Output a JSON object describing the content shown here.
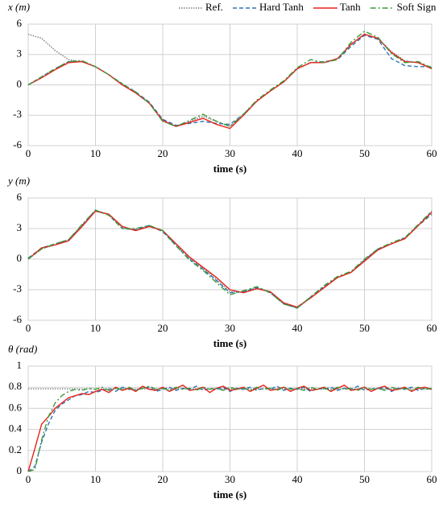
{
  "chart_data": [
    {
      "type": "line",
      "ylabel": "x (m)",
      "xlabel": "time (s)",
      "legend": "top-right",
      "grid": true,
      "x": [
        0,
        2,
        4,
        6,
        8,
        10,
        12,
        14,
        16,
        18,
        20,
        22,
        24,
        26,
        28,
        30,
        32,
        34,
        36,
        38,
        40,
        42,
        44,
        46,
        48,
        50,
        52,
        54,
        56,
        58,
        60
      ],
      "xlim": [
        0,
        60
      ],
      "xticks": [
        0,
        10,
        20,
        30,
        40,
        50,
        60
      ],
      "ylim": [
        -6,
        6
      ],
      "yticks": [
        6,
        3,
        0,
        -3,
        -6
      ],
      "series": [
        {
          "name": "Ref.",
          "color": "#7f7f7f",
          "style": "dotted",
          "values": [
            5,
            4.6,
            3.4,
            2.5,
            2.3,
            1.8,
            1.0,
            0,
            -0.8,
            -1.8,
            -3.6,
            -4.1,
            -3.6,
            -3.1,
            -3.6,
            -4.1,
            -3.0,
            -1.6,
            -0.6,
            0.3,
            1.6,
            2.2,
            2.2,
            2.6,
            4.0,
            5.0,
            4.6,
            3.3,
            2.4,
            2.2,
            1.7
          ]
        },
        {
          "name": "Hard Tanh",
          "color": "#2e75b6",
          "style": "dashed",
          "values": [
            0,
            0.8,
            1.6,
            2.3,
            2.3,
            1.8,
            1.0,
            0.1,
            -0.7,
            -1.7,
            -3.4,
            -4.0,
            -3.8,
            -3.6,
            -3.8,
            -3.9,
            -2.9,
            -1.6,
            -0.6,
            0.3,
            1.6,
            2.2,
            2.3,
            2.5,
            3.8,
            4.9,
            4.5,
            2.6,
            1.9,
            1.8,
            1.8
          ]
        },
        {
          "name": "Tanh",
          "color": "#e8231b",
          "style": "solid",
          "values": [
            0,
            0.7,
            1.5,
            2.2,
            2.3,
            1.8,
            1.0,
            0,
            -0.8,
            -1.8,
            -3.5,
            -4.1,
            -3.7,
            -3.3,
            -3.9,
            -4.3,
            -3.0,
            -1.6,
            -0.6,
            0.3,
            1.6,
            2.2,
            2.2,
            2.6,
            4.0,
            5.0,
            4.6,
            3.2,
            2.3,
            2.2,
            1.6
          ]
        },
        {
          "name": "Soft Sign",
          "color": "#3a9a3a",
          "style": "dashdot",
          "values": [
            0,
            0.8,
            1.6,
            2.3,
            2.4,
            1.8,
            1.0,
            0.1,
            -0.7,
            -1.8,
            -3.6,
            -4.1,
            -3.5,
            -2.9,
            -3.6,
            -4.1,
            -2.9,
            -1.5,
            -0.5,
            0.4,
            1.7,
            2.5,
            2.2,
            2.5,
            4.2,
            5.3,
            4.7,
            3.1,
            2.2,
            2.3,
            1.7
          ]
        }
      ]
    },
    {
      "type": "line",
      "ylabel": "y (m)",
      "xlabel": "time (s)",
      "grid": true,
      "x": [
        0,
        2,
        4,
        6,
        8,
        10,
        12,
        14,
        16,
        18,
        20,
        22,
        24,
        26,
        28,
        30,
        32,
        34,
        36,
        38,
        40,
        42,
        44,
        46,
        48,
        50,
        52,
        54,
        56,
        58,
        60
      ],
      "xlim": [
        0,
        60
      ],
      "xticks": [
        0,
        10,
        20,
        30,
        40,
        50,
        60
      ],
      "ylim": [
        -6,
        6
      ],
      "yticks": [
        6,
        3,
        0,
        -3,
        -6
      ],
      "series": [
        {
          "color": "#7f7f7f",
          "style": "dotted",
          "values": [
            0,
            1.0,
            1.4,
            1.8,
            3.2,
            4.8,
            4.4,
            3.1,
            2.8,
            3.3,
            2.8,
            1.4,
            0.1,
            -0.9,
            -2.0,
            -3.2,
            -3.2,
            -2.8,
            -3.2,
            -4.3,
            -4.8,
            -3.8,
            -2.8,
            -1.8,
            -1.3,
            -0.1,
            1.0,
            1.5,
            2.0,
            3.3,
            4.7
          ]
        },
        {
          "color": "#2e75b6",
          "style": "dashed",
          "values": [
            0.1,
            1.1,
            1.5,
            1.9,
            3.3,
            4.8,
            4.3,
            3.0,
            2.9,
            3.3,
            2.7,
            1.3,
            0,
            -1.0,
            -2.1,
            -3.3,
            -3.2,
            -2.8,
            -3.3,
            -4.4,
            -4.8,
            -3.7,
            -2.7,
            -1.8,
            -1.3,
            -0.1,
            1.0,
            1.5,
            2.1,
            3.3,
            4.4
          ]
        },
        {
          "color": "#e8231b",
          "style": "solid",
          "values": [
            0,
            1.1,
            1.4,
            1.8,
            3.2,
            4.7,
            4.4,
            3.2,
            2.8,
            3.2,
            2.8,
            1.5,
            0.2,
            -0.8,
            -1.8,
            -3.0,
            -3.3,
            -2.9,
            -3.2,
            -4.3,
            -4.7,
            -3.8,
            -2.8,
            -1.8,
            -1.3,
            -0.2,
            0.9,
            1.5,
            2.0,
            3.3,
            4.6
          ]
        },
        {
          "color": "#3a9a3a",
          "style": "dashdot",
          "values": [
            0,
            1.0,
            1.5,
            1.9,
            3.4,
            4.8,
            4.3,
            3.0,
            3.0,
            3.3,
            2.8,
            1.3,
            -0.1,
            -1.1,
            -2.3,
            -3.5,
            -3.1,
            -2.7,
            -3.3,
            -4.4,
            -4.8,
            -3.7,
            -2.6,
            -1.7,
            -1.2,
            0,
            1.0,
            1.6,
            2.1,
            3.4,
            4.7
          ]
        }
      ]
    },
    {
      "type": "line",
      "ylabel": "θ (rad)",
      "xlabel": "time (s)",
      "grid": true,
      "x": [
        0,
        1,
        2,
        3,
        4,
        5,
        6,
        7,
        8,
        9,
        10,
        11,
        12,
        13,
        14,
        15,
        16,
        17,
        18,
        19,
        20,
        21,
        22,
        23,
        24,
        25,
        26,
        27,
        28,
        29,
        30,
        31,
        32,
        33,
        34,
        35,
        36,
        37,
        38,
        39,
        40,
        41,
        42,
        43,
        44,
        45,
        46,
        47,
        48,
        49,
        50,
        51,
        52,
        53,
        54,
        55,
        56,
        57,
        58,
        59,
        60
      ],
      "xlim": [
        0,
        60
      ],
      "xticks": [
        0,
        10,
        20,
        30,
        40,
        50,
        60
      ],
      "ylim": [
        0,
        1
      ],
      "yticks": [
        1,
        0.8,
        0.6,
        0.4,
        0.2,
        0
      ],
      "series": [
        {
          "color": "#7f7f7f",
          "style": "dotted",
          "values": [
            0.785,
            0.785,
            0.785,
            0.785,
            0.785,
            0.785,
            0.785,
            0.785,
            0.785,
            0.785,
            0.785,
            0.785,
            0.785,
            0.785,
            0.785,
            0.785,
            0.785,
            0.785,
            0.785,
            0.785,
            0.785,
            0.785,
            0.785,
            0.785,
            0.785,
            0.785,
            0.785,
            0.785,
            0.785,
            0.785,
            0.785,
            0.785,
            0.785,
            0.785,
            0.785,
            0.785,
            0.785,
            0.785,
            0.785,
            0.785,
            0.785,
            0.785,
            0.785,
            0.785,
            0.785,
            0.785,
            0.785,
            0.785,
            0.785,
            0.785,
            0.785,
            0.785,
            0.785,
            0.785,
            0.785,
            0.785,
            0.785,
            0.785,
            0.785,
            0.785,
            0.785
          ]
        },
        {
          "color": "#2e75b6",
          "style": "dashed",
          "values": [
            0,
            0.05,
            0.28,
            0.45,
            0.58,
            0.64,
            0.68,
            0.72,
            0.73,
            0.76,
            0.75,
            0.77,
            0.79,
            0.76,
            0.8,
            0.78,
            0.77,
            0.79,
            0.8,
            0.76,
            0.78,
            0.8,
            0.77,
            0.79,
            0.78,
            0.81,
            0.77,
            0.79,
            0.78,
            0.8,
            0.76,
            0.79,
            0.78,
            0.8,
            0.77,
            0.79,
            0.78,
            0.81,
            0.77,
            0.79,
            0.78,
            0.8,
            0.76,
            0.79,
            0.78,
            0.8,
            0.77,
            0.79,
            0.78,
            0.81,
            0.77,
            0.79,
            0.78,
            0.8,
            0.76,
            0.79,
            0.78,
            0.8,
            0.77,
            0.79,
            0.78
          ]
        },
        {
          "color": "#e8231b",
          "style": "solid",
          "values": [
            0,
            0.22,
            0.45,
            0.52,
            0.6,
            0.65,
            0.7,
            0.72,
            0.74,
            0.73,
            0.76,
            0.78,
            0.75,
            0.8,
            0.77,
            0.79,
            0.76,
            0.81,
            0.78,
            0.77,
            0.8,
            0.76,
            0.79,
            0.82,
            0.77,
            0.78,
            0.8,
            0.75,
            0.79,
            0.81,
            0.77,
            0.78,
            0.8,
            0.76,
            0.79,
            0.82,
            0.77,
            0.78,
            0.8,
            0.76,
            0.79,
            0.81,
            0.77,
            0.78,
            0.8,
            0.76,
            0.79,
            0.82,
            0.77,
            0.78,
            0.8,
            0.76,
            0.79,
            0.81,
            0.77,
            0.78,
            0.8,
            0.76,
            0.79,
            0.8,
            0.78
          ]
        },
        {
          "color": "#3a9a3a",
          "style": "dashdot",
          "values": [
            0,
            0.02,
            0.3,
            0.52,
            0.65,
            0.72,
            0.76,
            0.78,
            0.77,
            0.79,
            0.78,
            0.8,
            0.77,
            0.79,
            0.78,
            0.8,
            0.77,
            0.79,
            0.81,
            0.78,
            0.79,
            0.77,
            0.8,
            0.78,
            0.79,
            0.77,
            0.8,
            0.78,
            0.79,
            0.77,
            0.8,
            0.78,
            0.79,
            0.77,
            0.8,
            0.78,
            0.79,
            0.77,
            0.8,
            0.78,
            0.79,
            0.77,
            0.8,
            0.78,
            0.79,
            0.77,
            0.8,
            0.78,
            0.79,
            0.77,
            0.8,
            0.78,
            0.79,
            0.77,
            0.8,
            0.78,
            0.79,
            0.77,
            0.8,
            0.78,
            0.79
          ]
        }
      ]
    }
  ]
}
